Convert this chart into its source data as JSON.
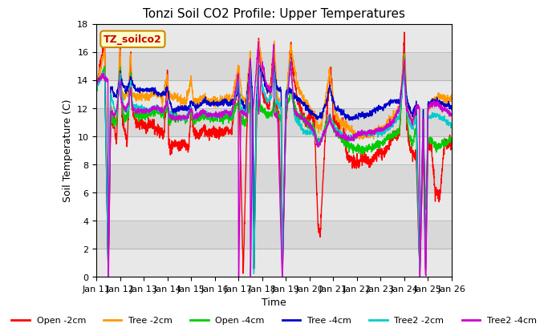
{
  "title": "Tonzi Soil CO2 Profile: Upper Temperatures",
  "xlabel": "Time",
  "ylabel": "Soil Temperature (C)",
  "subtitle_box": "TZ_soilco2",
  "ylim": [
    0,
    18
  ],
  "series_names": [
    "Open -2cm",
    "Tree -2cm",
    "Open -4cm",
    "Tree -4cm",
    "Tree2 -2cm",
    "Tree2 -4cm"
  ],
  "series_colors": [
    "#ff0000",
    "#ff9900",
    "#00cc00",
    "#0000cc",
    "#00cccc",
    "#cc00cc"
  ],
  "x_tick_labels": [
    "Jan 11",
    "Jan 12",
    "Jan 13",
    "Jan 14",
    "Jan 15",
    "Jan 16",
    "Jan 17",
    "Jan 18",
    "Jan 19",
    "Jan 20",
    "Jan 21",
    "Jan 22",
    "Jan 23",
    "Jan 24",
    "Jan 25",
    "Jan 26"
  ],
  "background_color": "#ffffff",
  "title_fontsize": 11,
  "label_fontsize": 9,
  "tick_fontsize": 8,
  "n_days": 15,
  "pts_per_day": 144
}
